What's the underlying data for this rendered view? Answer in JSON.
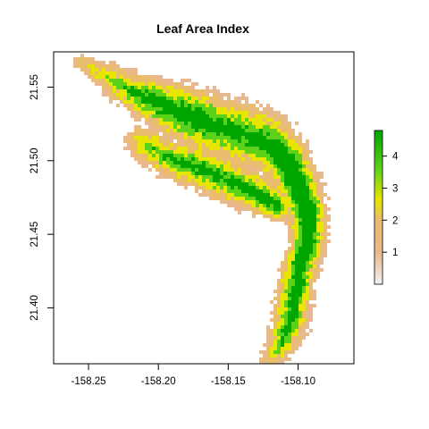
{
  "title": "Leaf Area Index",
  "x_axis": {
    "min": -158.275,
    "max": -158.06,
    "ticks": [
      -158.25,
      -158.2,
      -158.15,
      -158.1
    ],
    "tick_labels": [
      "-158.25",
      "-158.20",
      "-158.15",
      "-158.10"
    ]
  },
  "y_axis": {
    "min": 21.362,
    "max": 21.574,
    "ticks": [
      21.4,
      21.45,
      21.5,
      21.55
    ],
    "tick_labels": [
      "21.40",
      "21.45",
      "21.50",
      "21.55"
    ]
  },
  "legend": {
    "min": 0,
    "max": 4.8,
    "ticks": [
      1,
      2,
      3,
      4
    ],
    "tick_labels": [
      "1",
      "2",
      "3",
      "4"
    ]
  },
  "colors": {
    "low": "#f2f2f2",
    "tan": "#e8b98e",
    "mid_tan": "#e9bd6c",
    "yellow": "#e6e600",
    "light_green": "#5cd11a",
    "high": "#00a600"
  }
}
